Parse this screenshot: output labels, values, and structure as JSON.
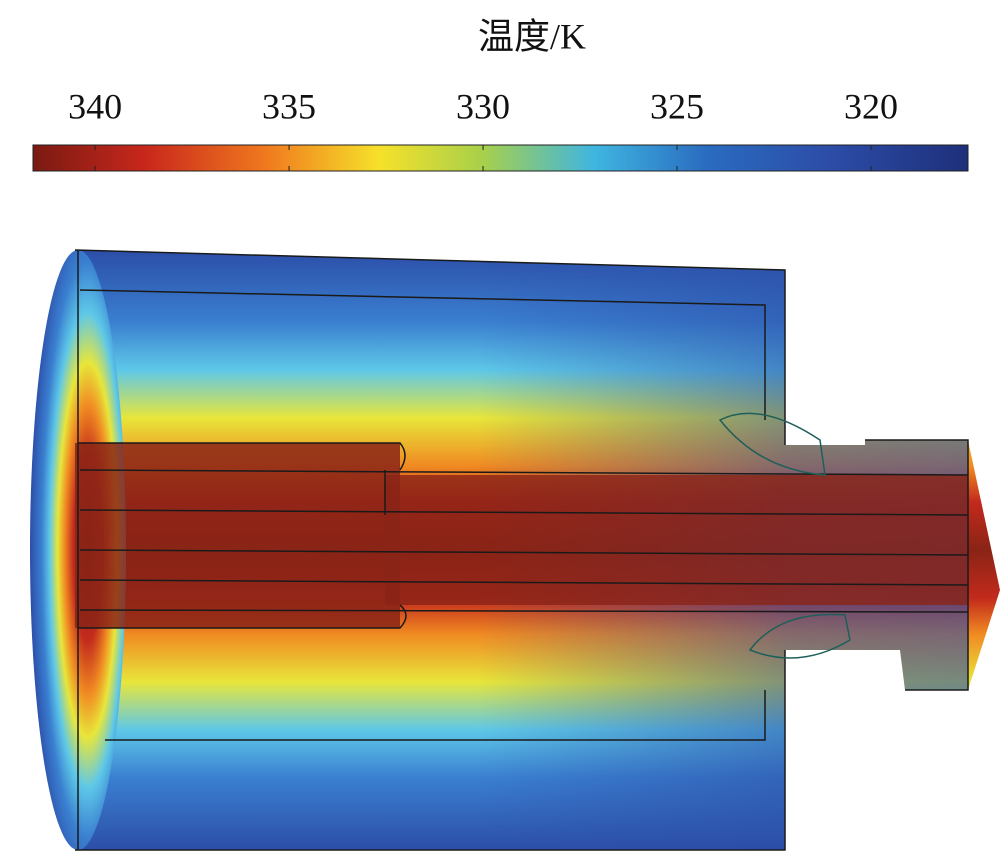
{
  "chart_data": {
    "type": "colorbar",
    "title": "温度/K",
    "clim": [
      341.6,
      317.5
    ],
    "ticks": [
      340,
      335,
      330,
      325,
      320
    ]
  }
}
